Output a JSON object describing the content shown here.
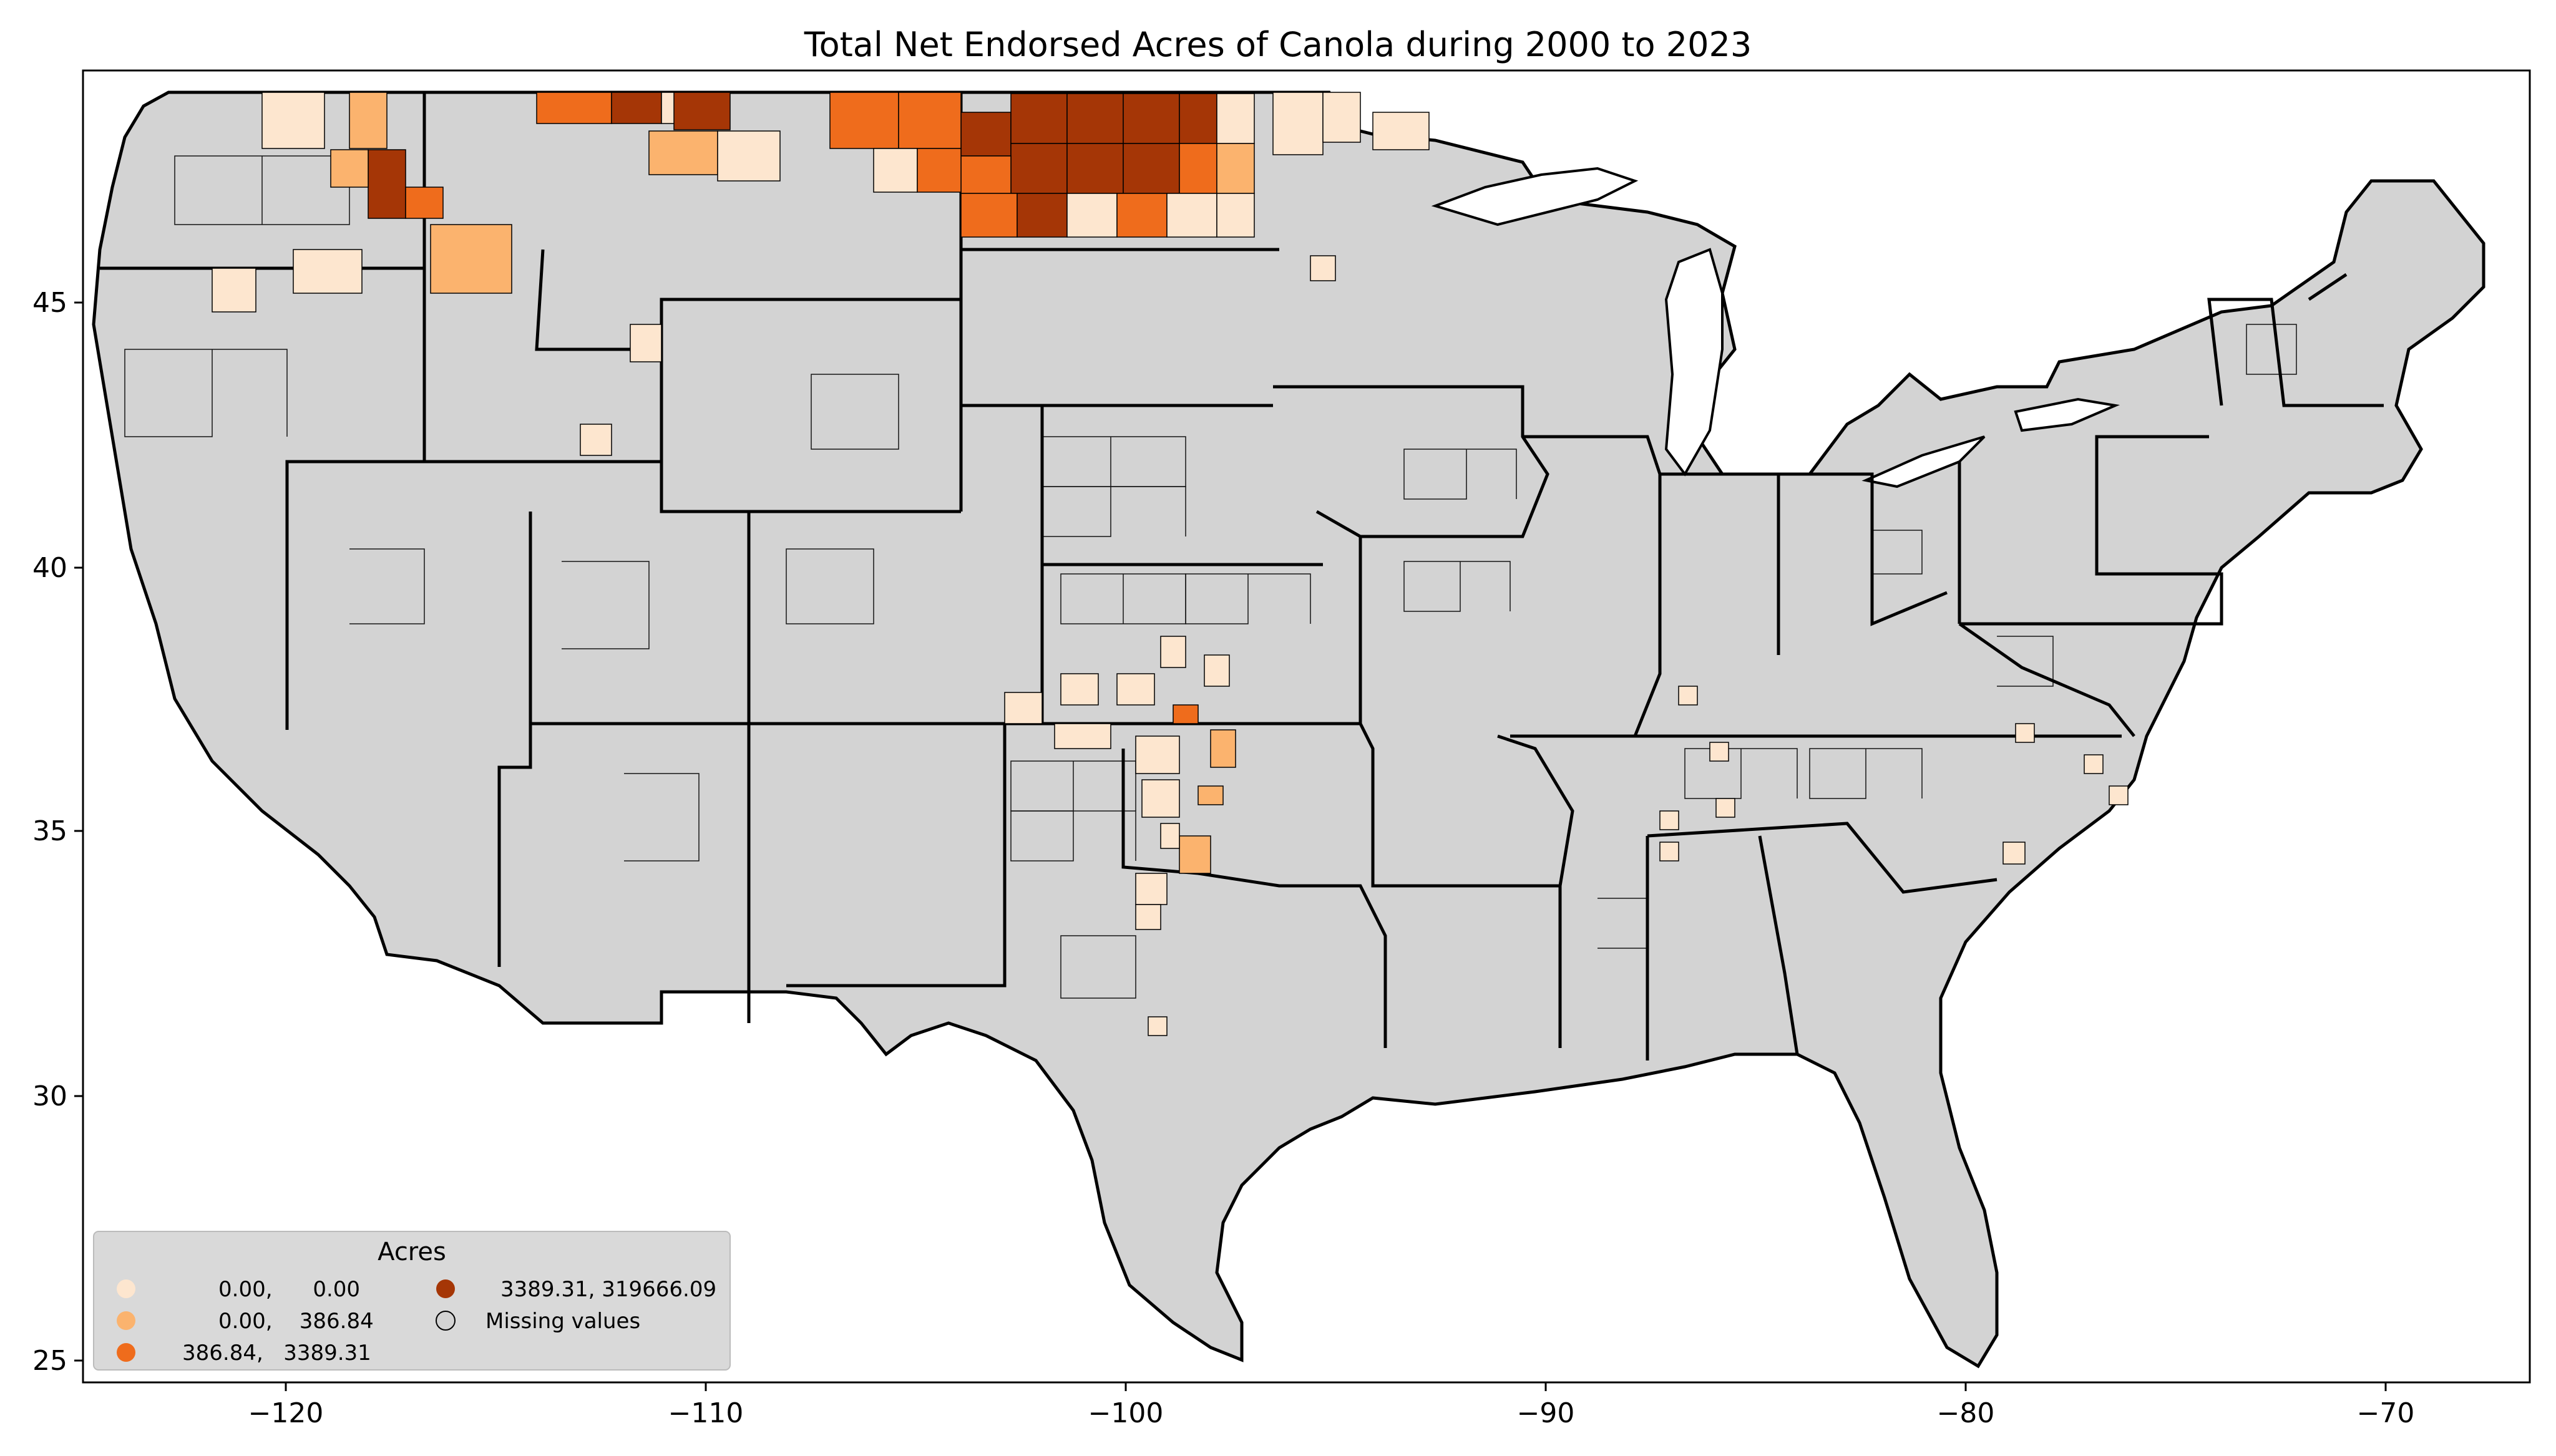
{
  "title": "Total Net Endorsed Acres of Canola during 2000 to 2023",
  "axes": {
    "x_ticks": [
      "−120",
      "−110",
      "−100",
      "−90",
      "−80",
      "−70"
    ],
    "y_ticks": [
      "45",
      "40",
      "35",
      "30",
      "25"
    ]
  },
  "legend": {
    "title": "Acres",
    "placement": "lower-left",
    "items": [
      {
        "label": "0.00,      0.00",
        "color": "#fde6cf"
      },
      {
        "label": "0.00,    386.84",
        "color": "#fbb36e"
      },
      {
        "label": "386.84,   3389.31",
        "color": "#ef6c1c"
      },
      {
        "label": "3389.31, 319666.09",
        "color": "#a53606"
      },
      {
        "label": "Missing values",
        "color": "#d3d3d3"
      }
    ]
  },
  "colors": {
    "missing": "#d3d3d3",
    "border": "#000000",
    "class1": "#fde6cf",
    "class2": "#fbb36e",
    "class3": "#ef6c1c",
    "class4": "#a53606"
  }
}
